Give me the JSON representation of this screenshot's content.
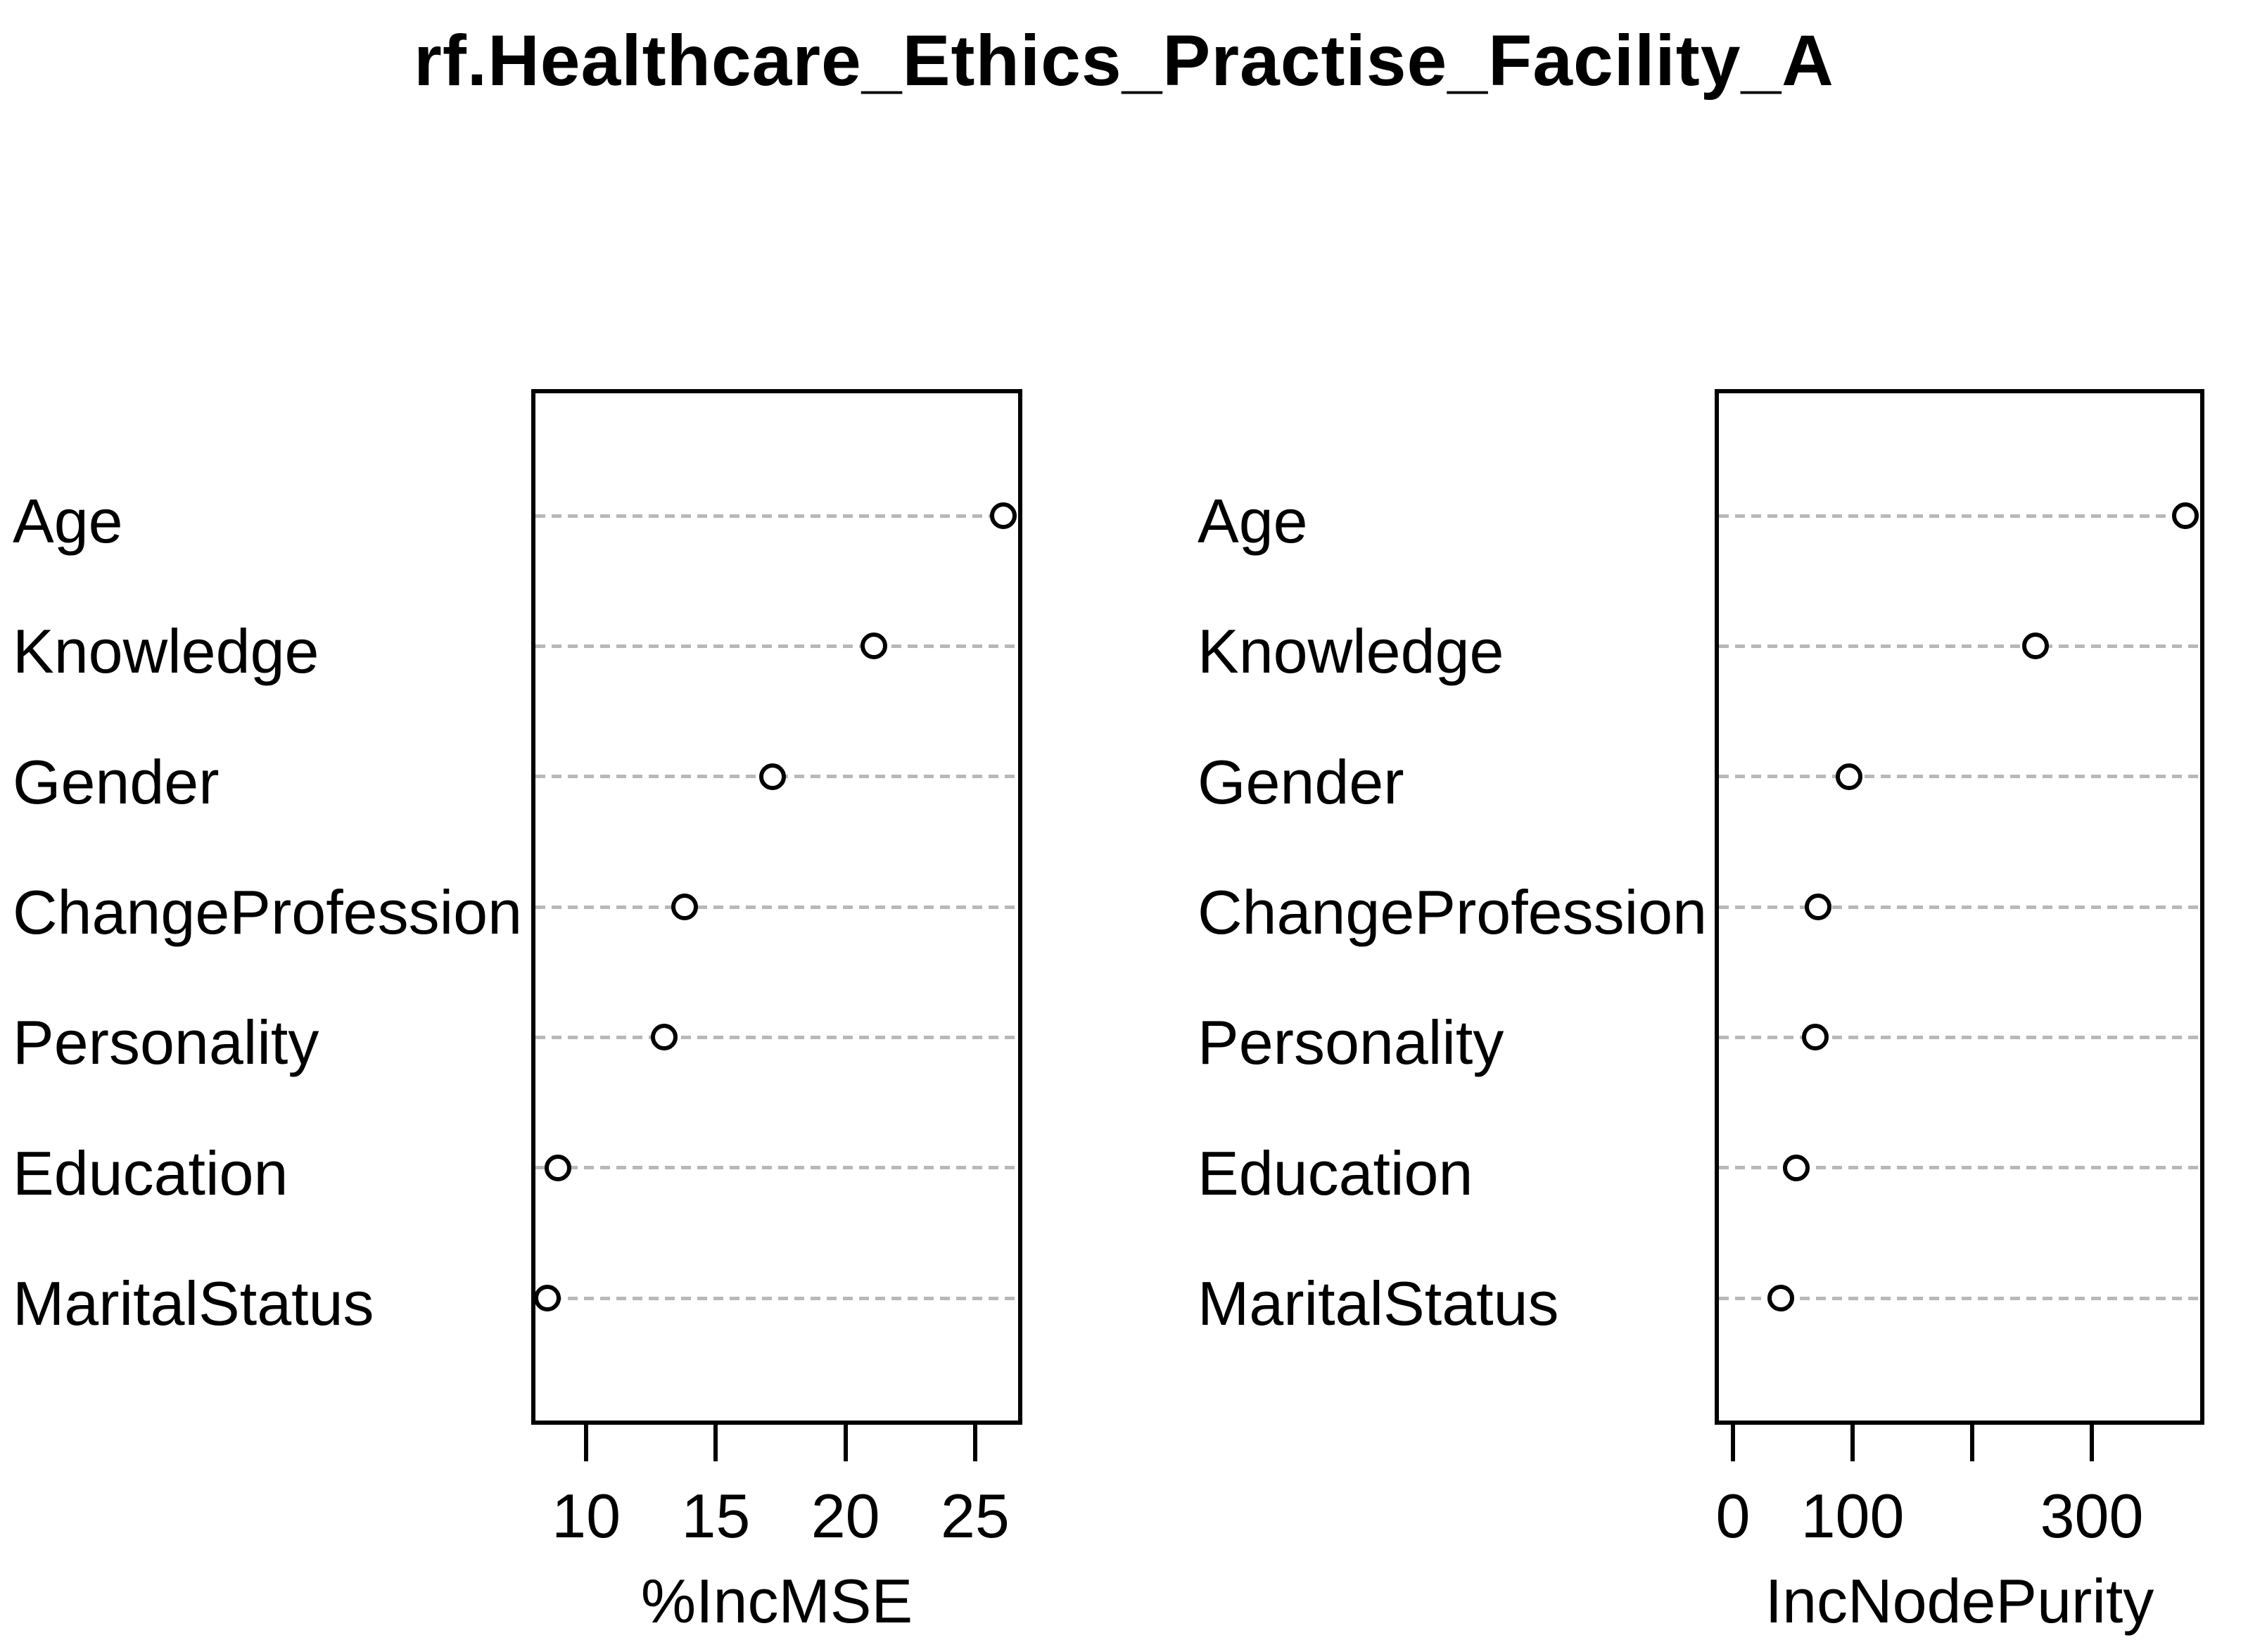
{
  "title": "rf.Healthcare_Ethics_Practise_Facility_A",
  "colors": {
    "background": "#ffffff",
    "text": "#000000",
    "box_border": "#000000",
    "gridline": "#b8b8b8",
    "point_fill": "#ffffff",
    "point_stroke": "#000000"
  },
  "chart_data": [
    {
      "type": "scatter",
      "panel": "left",
      "title": "rf.Healthcare_Ethics_Practise_Facility_A",
      "categories": [
        "Age",
        "Knowledge",
        "Gender",
        "ChangeProfession",
        "Personality",
        "Education",
        "MaritalStatus"
      ],
      "values": [
        26.1,
        21.1,
        17.2,
        13.8,
        13.0,
        8.9,
        8.5
      ],
      "xlabel": "%IncMSE",
      "ylabel": "",
      "xticks": [
        10,
        15,
        20,
        25
      ],
      "xtick_labels": [
        "10",
        "15",
        "20",
        "25"
      ],
      "xlim": [
        7.88,
        26.82
      ],
      "grid": "horizontal-dashed",
      "marker": "open-circle",
      "legend": "none"
    },
    {
      "type": "scatter",
      "panel": "right",
      "title": "rf.Healthcare_Ethics_Practise_Facility_A",
      "categories": [
        "Age",
        "Knowledge",
        "Gender",
        "ChangeProfession",
        "Personality",
        "Education",
        "MaritalStatus"
      ],
      "values": [
        378,
        253,
        97,
        71,
        69,
        53,
        40
      ],
      "xlabel": "IncNodePurity",
      "ylabel": "",
      "xticks": [
        0,
        100,
        200,
        300
      ],
      "xtick_labels": [
        "0",
        "100",
        "",
        "300"
      ],
      "xlim": [
        -15.3,
        394.1
      ],
      "grid": "horizontal-dashed",
      "marker": "open-circle",
      "legend": "none"
    }
  ]
}
